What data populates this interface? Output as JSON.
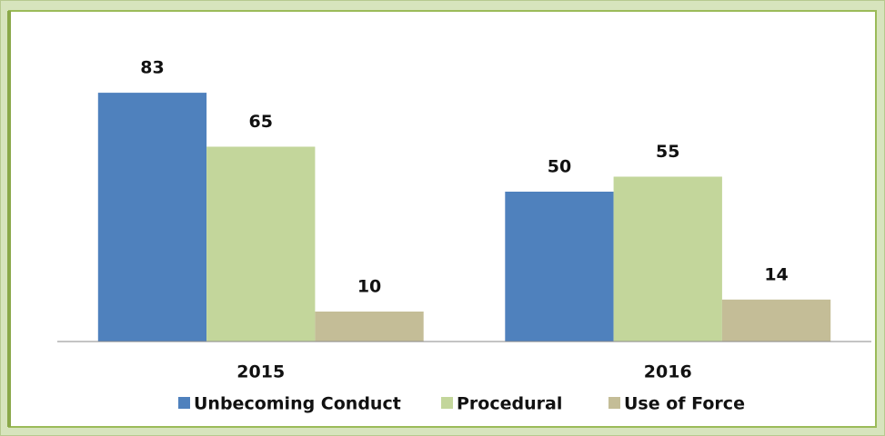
{
  "chart_data": {
    "type": "bar",
    "categories": [
      "2015",
      "2016"
    ],
    "series": [
      {
        "name": "Unbecoming Conduct",
        "color": "#4f81bd",
        "values": [
          83,
          50
        ]
      },
      {
        "name": "Procedural",
        "color": "#c3d69b",
        "values": [
          65,
          55
        ]
      },
      {
        "name": "Use of Force",
        "color": "#c4bd97",
        "values": [
          10,
          14
        ]
      }
    ],
    "ylim": [
      0,
      100
    ]
  }
}
